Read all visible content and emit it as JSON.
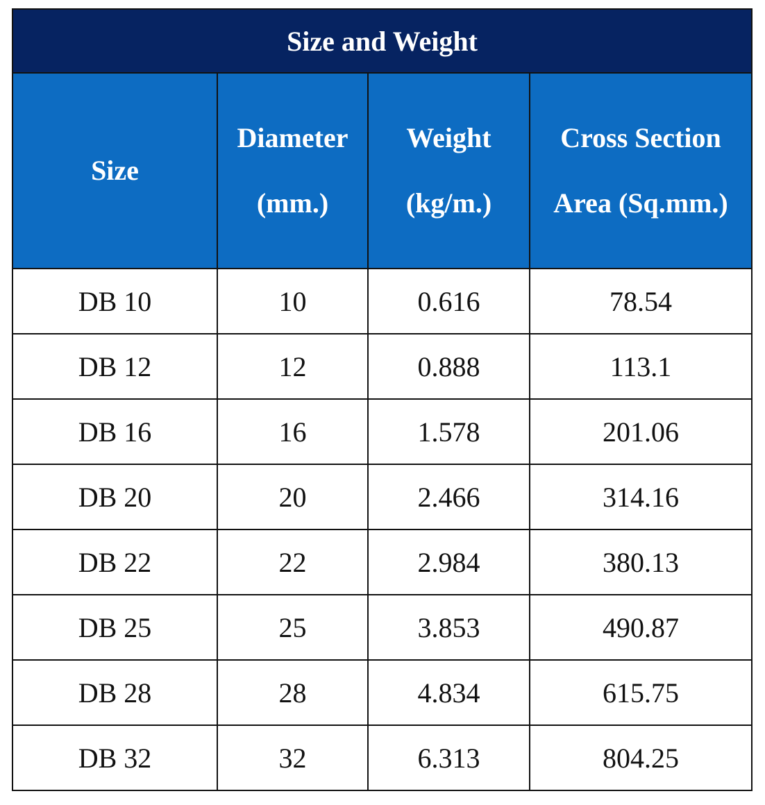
{
  "table": {
    "title": "Size and Weight",
    "headers": [
      {
        "line1": "Size",
        "line2": ""
      },
      {
        "line1": "Diameter",
        "line2": "(mm.)"
      },
      {
        "line1": "Weight",
        "line2": "(kg/m.)"
      },
      {
        "line1": "Cross Section",
        "line2": "Area (Sq.mm.)"
      }
    ],
    "rows": [
      [
        "DB 10",
        "10",
        "0.616",
        "78.54"
      ],
      [
        "DB 12",
        "12",
        "0.888",
        "113.1"
      ],
      [
        "DB 16",
        "16",
        "1.578",
        "201.06"
      ],
      [
        "DB 20",
        "20",
        "2.466",
        "314.16"
      ],
      [
        "DB 22",
        "22",
        "2.984",
        "380.13"
      ],
      [
        "DB 25",
        "25",
        "3.853",
        "490.87"
      ],
      [
        "DB 28",
        "28",
        "4.834",
        "615.75"
      ],
      [
        "DB 32",
        "32",
        "6.313",
        "804.25"
      ]
    ],
    "colors": {
      "title_bg": "#062361",
      "header_bg": "#0d6cc2",
      "header_text": "#ffffff",
      "border": "#111111"
    }
  }
}
